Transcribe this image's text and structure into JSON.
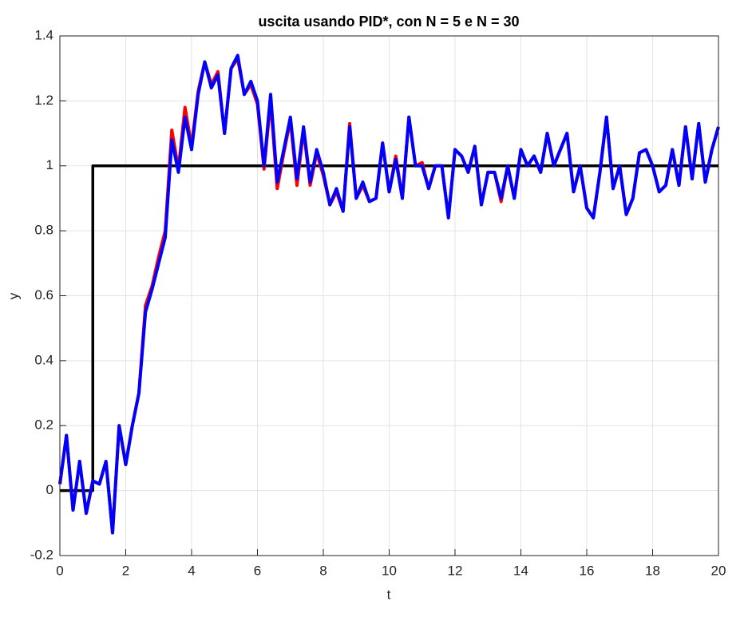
{
  "chart_data": {
    "type": "line",
    "title": "uscita usando PID*, con N = 5 e N = 30",
    "xlabel": "t",
    "ylabel": "y",
    "x": [
      0,
      0.2,
      0.4,
      0.6,
      0.8,
      1,
      1.2,
      1.4,
      1.6,
      1.8,
      2,
      2.2,
      2.4,
      2.6,
      2.8,
      3,
      3.2,
      3.4,
      3.6,
      3.8,
      4,
      4.2,
      4.4,
      4.6,
      4.8,
      5,
      5.2,
      5.4,
      5.6,
      5.8,
      6,
      6.2,
      6.4,
      6.6,
      6.8,
      7,
      7.2,
      7.4,
      7.6,
      7.8,
      8,
      8.2,
      8.4,
      8.6,
      8.8,
      9,
      9.2,
      9.4,
      9.6,
      9.8,
      10,
      10.2,
      10.4,
      10.6,
      10.8,
      11,
      11.2,
      11.4,
      11.6,
      11.8,
      12,
      12.2,
      12.4,
      12.6,
      12.8,
      13,
      13.2,
      13.4,
      13.6,
      13.8,
      14,
      14.2,
      14.4,
      14.6,
      14.8,
      15,
      15.2,
      15.4,
      15.6,
      15.8,
      16,
      16.2,
      16.4,
      16.6,
      16.8,
      17,
      17.2,
      17.4,
      17.6,
      17.8,
      18,
      18.2,
      18.4,
      18.6,
      18.8,
      19,
      19.2,
      19.4,
      19.6,
      19.8,
      20
    ],
    "series": [
      {
        "color": "#000000",
        "x": [
          0,
          1,
          1,
          20
        ],
        "values": [
          0,
          0,
          1,
          1
        ]
      },
      {
        "color": "#ff0000",
        "values": [
          0.02,
          0.17,
          -0.06,
          0.09,
          -0.07,
          0.03,
          0.02,
          0.09,
          -0.13,
          0.2,
          0.08,
          0.2,
          0.3,
          0.57,
          0.63,
          0.72,
          0.8,
          1.11,
          0.99,
          1.18,
          1.06,
          1.23,
          1.32,
          1.25,
          1.29,
          1.1,
          1.3,
          1.33,
          1.22,
          1.25,
          1.19,
          0.99,
          1.2,
          0.93,
          1.04,
          1.14,
          0.94,
          1.11,
          0.94,
          1.04,
          0.97,
          0.88,
          0.92,
          0.86,
          1.13,
          0.9,
          0.94,
          0.89,
          0.9,
          1.07,
          0.92,
          1.03,
          0.9,
          1.15,
          1.0,
          1.01,
          0.93,
          1.0,
          1.0,
          0.84,
          1.05,
          1.03,
          0.98,
          1.06,
          0.88,
          0.98,
          0.98,
          0.89,
          1.0,
          0.9,
          1.05,
          1.0,
          1.03,
          0.98,
          1.1,
          1.0,
          1.05,
          1.1,
          0.92,
          1.0,
          0.87,
          0.84,
          0.98,
          1.15,
          0.93,
          1.0,
          0.85,
          0.9,
          1.04,
          1.05,
          1.0,
          0.92,
          0.94,
          1.05,
          0.94,
          1.12,
          0.96,
          1.13,
          0.95,
          1.05,
          1.12
        ]
      },
      {
        "color": "#0000ff",
        "values": [
          0.02,
          0.17,
          -0.06,
          0.09,
          -0.07,
          0.03,
          0.02,
          0.09,
          -0.13,
          0.2,
          0.08,
          0.2,
          0.3,
          0.55,
          0.62,
          0.7,
          0.78,
          1.08,
          0.98,
          1.15,
          1.05,
          1.22,
          1.32,
          1.24,
          1.28,
          1.1,
          1.3,
          1.34,
          1.22,
          1.26,
          1.2,
          1.0,
          1.22,
          0.95,
          1.05,
          1.15,
          0.96,
          1.12,
          0.95,
          1.05,
          0.98,
          0.88,
          0.93,
          0.86,
          1.12,
          0.9,
          0.95,
          0.89,
          0.9,
          1.07,
          0.92,
          1.02,
          0.9,
          1.15,
          1.0,
          1.0,
          0.93,
          1.0,
          1.0,
          0.84,
          1.05,
          1.03,
          0.98,
          1.06,
          0.88,
          0.98,
          0.98,
          0.9,
          1.0,
          0.9,
          1.05,
          1.0,
          1.03,
          0.98,
          1.1,
          1.0,
          1.05,
          1.1,
          0.92,
          1.0,
          0.87,
          0.84,
          0.98,
          1.15,
          0.93,
          1.0,
          0.85,
          0.9,
          1.04,
          1.05,
          1.0,
          0.92,
          0.94,
          1.05,
          0.94,
          1.12,
          0.96,
          1.13,
          0.95,
          1.05,
          1.12
        ]
      }
    ],
    "xlim": [
      0,
      20
    ],
    "ylim": [
      -0.2,
      1.4
    ],
    "xticks": [
      0,
      2,
      4,
      6,
      8,
      10,
      12,
      14,
      16,
      18,
      20
    ],
    "yticks": [
      -0.2,
      0,
      0.2,
      0.4,
      0.6,
      0.8,
      1,
      1.2,
      1.4
    ],
    "grid": true
  }
}
